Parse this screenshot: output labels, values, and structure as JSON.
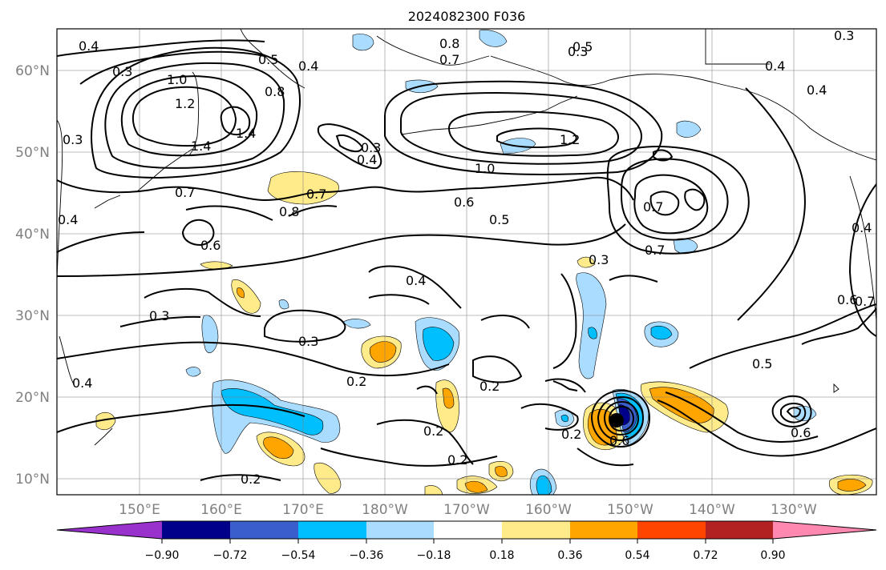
{
  "title": "2024082300 F036",
  "lat_labels": [
    "10°N",
    "20°N",
    "30°N",
    "40°N",
    "50°N",
    "60°N"
  ],
  "lon_labels": [
    "150°E",
    "160°E",
    "170°E",
    "180°W",
    "170°W",
    "160°W",
    "150°W",
    "140°W",
    "130°W"
  ],
  "colorbar": {
    "ticks": [
      "−0.90",
      "−0.72",
      "−0.54",
      "−0.36",
      "−0.18",
      "0.18",
      "0.36",
      "0.54",
      "0.72",
      "0.90"
    ],
    "colors": [
      "#9932cc",
      "#00008b",
      "#3a5fcd",
      "#00bfff",
      "#aadcff",
      "#ffffff",
      "#ffeb8a",
      "#ffa500",
      "#ff4500",
      "#b22222",
      "#ff88b0"
    ]
  },
  "contour_labels": [
    "0.4",
    "0.3",
    "0.5",
    "0.4",
    "1.0",
    "1.2",
    "0.8",
    "1.4",
    "1.4",
    "0.7",
    "0.3",
    "0.4",
    "0.8",
    "0.7",
    "0.6",
    "0.3",
    "0.8",
    "0.4",
    "0.3",
    "0.3",
    "1.2",
    "1.0",
    "0.6",
    "0.5",
    "0.7",
    "0.7",
    "0.4",
    "0.4",
    "0.3",
    "0.4",
    "0.3",
    "0.2",
    "0.2",
    "0.2",
    "0.2",
    "0.2",
    "0.5",
    "0.6",
    "0.6",
    "0.7",
    "0.4",
    "0.5",
    "0.7",
    "0.4",
    "0.3",
    "0.6",
    "0.2"
  ],
  "colors": {
    "frame": "#000000",
    "grid": "#808080",
    "contour": "#000000",
    "coast": "#000000"
  }
}
